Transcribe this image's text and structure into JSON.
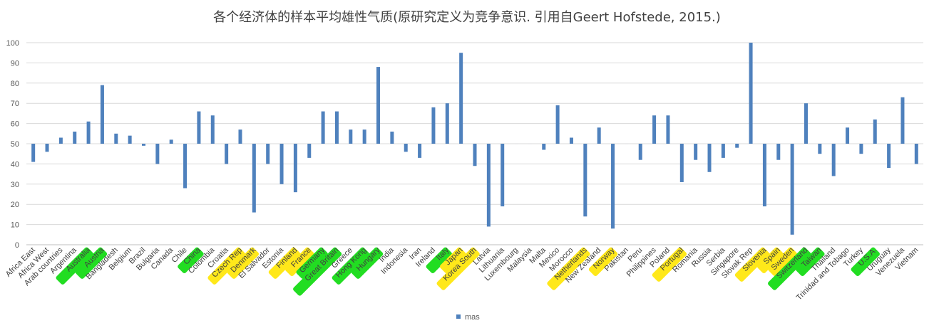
{
  "chart_data": {
    "type": "bar",
    "title": "各个经济体的样本平均雄性气质(原研究定义为竞争意识. 引用自Geert Hofstede, 2015.)",
    "xlabel": "",
    "ylabel": "",
    "ylim": [
      0,
      100
    ],
    "yticks": [
      0,
      10,
      20,
      30,
      40,
      50,
      60,
      70,
      80,
      90,
      100
    ],
    "baseline": 50,
    "grid": true,
    "legend_position": "bottom-center",
    "bar_color": "#4F81BD",
    "highlight_colors": {
      "green": "#22DD22",
      "yellow": "#FFE81A"
    },
    "categories": [
      "Africa East",
      "Africa West",
      "Arab countries",
      "Argentina",
      "Australia",
      "Austria",
      "Bangladesh",
      "Belgium",
      "Brazil",
      "Bulgaria",
      "Canada",
      "Chile",
      "China",
      "Colombia",
      "Croatia",
      "Czech Rep",
      "Denmark",
      "El Salvador",
      "Estonia",
      "Finland",
      "France",
      "Germany",
      "Great Britain",
      "Greece",
      "Hong Kong",
      "Hungary",
      "India",
      "Indonesia",
      "Iran",
      "Ireland",
      "Italy",
      "Japan",
      "Korea South",
      "Latvia",
      "Lithuania",
      "Luxembourg",
      "Malaysia",
      "Malta",
      "Mexico",
      "Morocco",
      "Netherlands",
      "New Zealand",
      "Norway",
      "Pakistan",
      "Peru",
      "Philippines",
      "Poland",
      "Portugal",
      "Romania",
      "Russia",
      "Serbia",
      "Singapore",
      "Slovak Rep",
      "Slovenia",
      "Spain",
      "Sweden",
      "Switzerland",
      "Taiwan",
      "Thailand",
      "Trinidad and Tobago",
      "Turkey",
      "U.S.A.",
      "Uruguay",
      "Venezuela",
      "Vietnam"
    ],
    "highlights": [
      "",
      "",
      "",
      "",
      "green",
      "green",
      "",
      "",
      "",
      "",
      "",
      "",
      "green",
      "",
      "",
      "yellow",
      "yellow",
      "",
      "",
      "yellow",
      "yellow",
      "green",
      "green",
      "",
      "green",
      "green",
      "",
      "",
      "",
      "",
      "green",
      "yellow",
      "yellow",
      "",
      "",
      "",
      "",
      "",
      "",
      "",
      "yellow",
      "",
      "yellow",
      "",
      "",
      "",
      "",
      "yellow",
      "",
      "",
      "",
      "",
      "",
      "yellow",
      "yellow",
      "yellow",
      "green",
      "green",
      "",
      "",
      "",
      "green",
      "",
      "",
      ""
    ],
    "series": [
      {
        "name": "mas",
        "values": [
          41,
          46,
          53,
          56,
          61,
          79,
          55,
          54,
          49,
          40,
          52,
          28,
          66,
          64,
          40,
          57,
          16,
          40,
          30,
          26,
          43,
          66,
          66,
          57,
          57,
          88,
          56,
          46,
          43,
          68,
          70,
          95,
          39,
          9,
          19,
          50,
          50,
          47,
          69,
          53,
          14,
          58,
          8,
          50,
          42,
          64,
          64,
          31,
          42,
          36,
          43,
          48,
          100,
          19,
          42,
          5,
          70,
          45,
          34,
          58,
          45,
          62,
          38,
          73,
          40
        ]
      }
    ]
  }
}
